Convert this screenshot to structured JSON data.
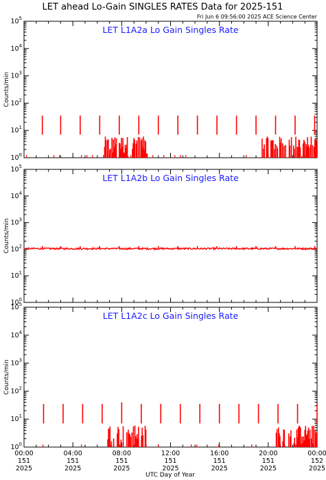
{
  "header": {
    "title": "LET ahead Lo-Gain SINGLES RATES Data for 2025-151",
    "stamp": "Fri Jun  6 09:56:00 2025 ACE Science Center"
  },
  "colors": {
    "data": "#ff0000",
    "panel_title": "#1a1aff",
    "axes": "#000000"
  },
  "chart_data": [
    {
      "type": "line",
      "title": "LET L1A2a Lo Gain Singles Rate",
      "ylabel": "Counts/min",
      "xlabel": "UTC Day of Year",
      "yscale": "log",
      "ylim": [
        1,
        100000
      ],
      "xlim": [
        0,
        24
      ],
      "grid": false,
      "spikes": {
        "x": [
          1.5,
          3.0,
          4.6,
          6.2,
          7.8,
          9.4,
          11.0,
          12.6,
          14.2,
          15.8,
          17.4,
          19.0,
          20.6,
          22.2,
          23.8
        ],
        "y": [
          35,
          35,
          35,
          35,
          35,
          35,
          35,
          35,
          35,
          35,
          35,
          35,
          35,
          35,
          35
        ]
      },
      "noise": {
        "x_start": 6.6,
        "x_end": 10.2,
        "max": 6,
        "x_start2": 19.5,
        "x_end2": 24.0,
        "max2": 6
      },
      "baseline": 1
    },
    {
      "type": "line",
      "title": "LET L1A2b Lo Gain Singles Rate",
      "ylabel": "Counts/min",
      "xlabel": "UTC Day of Year",
      "yscale": "log",
      "ylim": [
        1,
        100000
      ],
      "xlim": [
        0,
        24
      ],
      "grid": false,
      "spikes": {
        "x": [
          1.5,
          3.0,
          4.6,
          6.2,
          7.8,
          9.4,
          11.0,
          12.6,
          14.2,
          15.8,
          17.4,
          19.0,
          20.6,
          22.2,
          23.8
        ],
        "y": [
          130,
          130,
          130,
          130,
          130,
          130,
          130,
          130,
          130,
          130,
          130,
          130,
          130,
          130,
          130
        ]
      },
      "noise": null,
      "baseline": 105
    },
    {
      "type": "line",
      "title": "LET L1A2c Lo Gain Singles Rate",
      "ylabel": "Counts/min",
      "xlabel": "UTC Day of Year",
      "yscale": "log",
      "ylim": [
        1,
        100000
      ],
      "xlim": [
        0,
        24
      ],
      "grid": false,
      "spikes": {
        "x": [
          1.6,
          3.2,
          4.8,
          6.4,
          8.0,
          9.6,
          11.2,
          12.8,
          14.4,
          16.0,
          17.6,
          19.2,
          20.8,
          22.4,
          24.0
        ],
        "y": [
          35,
          35,
          35,
          35,
          40,
          35,
          35,
          35,
          35,
          35,
          35,
          35,
          35,
          35,
          35
        ]
      },
      "noise": {
        "x_start": 6.8,
        "x_end": 10.0,
        "max": 6,
        "x_start2": 20.6,
        "x_end2": 24.0,
        "max2": 6
      },
      "baseline": 1
    }
  ],
  "y_ticks": [
    {
      "base": "10",
      "exp": "0"
    },
    {
      "base": "10",
      "exp": "1"
    },
    {
      "base": "10",
      "exp": "2"
    },
    {
      "base": "10",
      "exp": "3"
    },
    {
      "base": "10",
      "exp": "4"
    },
    {
      "base": "10",
      "exp": "5"
    }
  ],
  "x_ticks": [
    {
      "x": 0,
      "time": "00:00",
      "doy": "151",
      "year": "2025"
    },
    {
      "x": 4,
      "time": "04:00",
      "doy": "151",
      "year": "2025"
    },
    {
      "x": 8,
      "time": "08:00",
      "doy": "151",
      "year": "2025"
    },
    {
      "x": 12,
      "time": "12:00",
      "doy": "151",
      "year": "2025"
    },
    {
      "x": 16,
      "time": "16:00",
      "doy": "151",
      "year": "2025"
    },
    {
      "x": 20,
      "time": "20:00",
      "doy": "151",
      "year": "2025"
    },
    {
      "x": 24,
      "time": "00:00",
      "doy": "152",
      "year": "2025"
    }
  ]
}
